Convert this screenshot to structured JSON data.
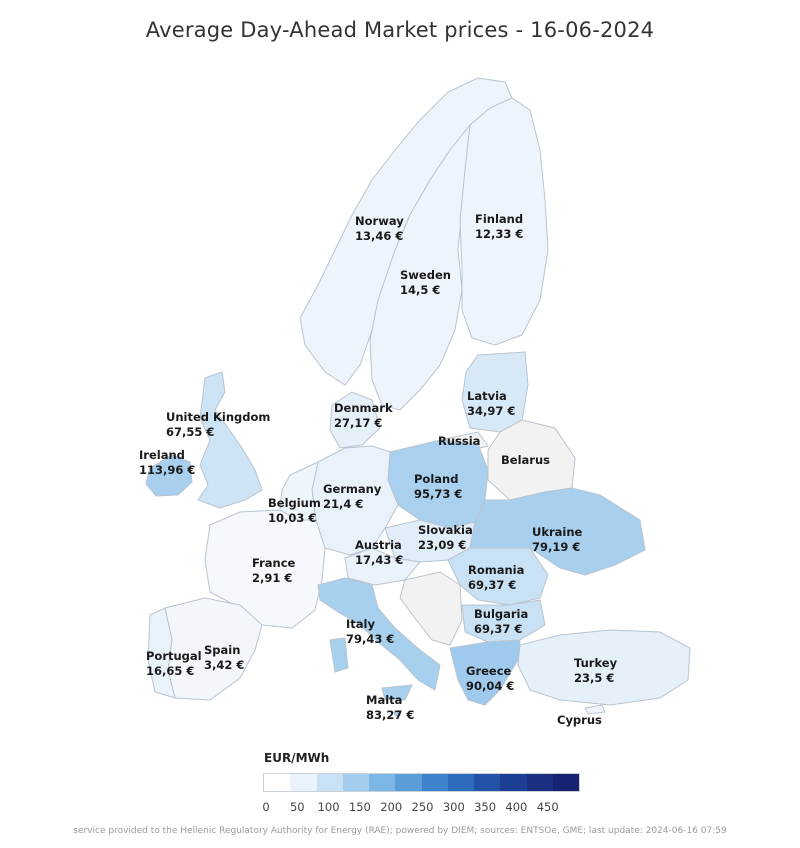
{
  "title": "Average Day-Ahead Market prices - 16-06-2024",
  "countries": {
    "norway": {
      "name": "Norway",
      "price": "13,46 €"
    },
    "sweden": {
      "name": "Sweden",
      "price": "14,5 €"
    },
    "finland": {
      "name": "Finland",
      "price": "12,33 €"
    },
    "latvia": {
      "name": "Latvia",
      "price": "34,97 €"
    },
    "russia": {
      "name": "Russia"
    },
    "belarus": {
      "name": "Belarus"
    },
    "denmark": {
      "name": "Denmark",
      "price": "27,17 €"
    },
    "united_kingdom": {
      "name": "United Kingdom",
      "price": "67,55 €"
    },
    "ireland": {
      "name": "Ireland",
      "price": "113,96 €"
    },
    "poland": {
      "name": "Poland",
      "price": "95,73 €"
    },
    "germany": {
      "name": "Germany",
      "price": "21,4 €"
    },
    "belgium": {
      "name": "Belgium",
      "price": "10,03 €"
    },
    "slovakia": {
      "name": "Slovakia",
      "price": "23,09 €"
    },
    "ukraine": {
      "name": "Ukraine",
      "price": "79,19 €"
    },
    "austria": {
      "name": "Austria",
      "price": "17,43 €"
    },
    "france": {
      "name": "France",
      "price": "2,91 €"
    },
    "romania": {
      "name": "Romania",
      "price": "69,37 €"
    },
    "bulgaria": {
      "name": "Bulgaria",
      "price": "69,37 €"
    },
    "italy": {
      "name": "Italy",
      "price": "79,43 €"
    },
    "portugal": {
      "name": "Portugal",
      "price": "16,65 €"
    },
    "spain": {
      "name": "Spain",
      "price": "3,42 €"
    },
    "greece": {
      "name": "Greece",
      "price": "90,04 €"
    },
    "turkey": {
      "name": "Turkey",
      "price": "23,5 €"
    },
    "malta": {
      "name": "Malta",
      "price": "83,27 €"
    },
    "cyprus": {
      "name": "Cyprus"
    }
  },
  "legend": {
    "title": "EUR/MWh",
    "ticks": [
      "0",
      "50",
      "100",
      "150",
      "200",
      "250",
      "300",
      "350",
      "400",
      "450"
    ],
    "colors": [
      "#ffffff",
      "#eaf2fb",
      "#c9e1f5",
      "#a3cdee",
      "#7cb6e4",
      "#5a9ed9",
      "#3e84cc",
      "#2d6bbb",
      "#2452a6",
      "#1d3f93",
      "#1b2f80",
      "#182272"
    ]
  },
  "footer": "service provided to the Hellenic Regulatory Authority for Energy (RAE); powered by DIEM; sources: ENTSOe, GME; last update: 2024-06-16 07:59"
}
